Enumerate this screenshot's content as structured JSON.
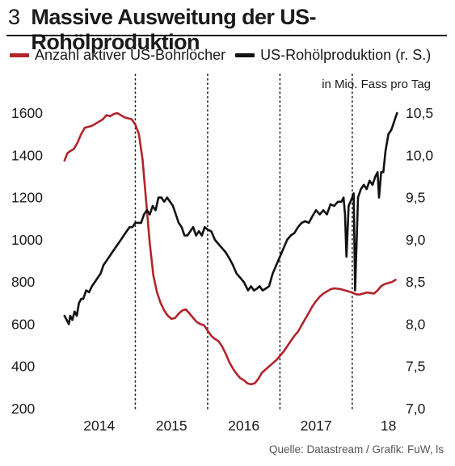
{
  "header": {
    "number": "3",
    "title": "Massive Ausweitung der US-Rohölproduktion"
  },
  "legend": [
    {
      "label": "Anzahl aktiver US-Bohrlöcher",
      "color": "#b2242b"
    },
    {
      "label": "US-Rohölproduktion (r. S.)",
      "color": "#111111"
    }
  ],
  "unit_right": "in Mio. Fass pro Tag",
  "source": "Quelle: Datastream / Grafik: FuW, ls",
  "chart_data": {
    "type": "line",
    "title": "Massive Ausweitung der US-Rohölproduktion",
    "x_labels": [
      "2014",
      "2015",
      "2016",
      "2017",
      "18"
    ],
    "x_range": [
      2013.5,
      2018.15
    ],
    "y_left": {
      "ticks": [
        "1600",
        "1400",
        "1200",
        "1000",
        "800",
        "600",
        "400",
        "200"
      ],
      "range": [
        200,
        1650
      ]
    },
    "y_right": {
      "ticks": [
        "10,5",
        "10,0",
        "9,5",
        "9,0",
        "8,5",
        "8,0",
        "7,5",
        "7,0"
      ],
      "range": [
        7.0,
        10.55
      ],
      "label": "in Mio. Fass pro Tag"
    },
    "grid": "vertical dotted at year boundaries",
    "series": [
      {
        "name": "Anzahl aktiver US-Bohrlöcher",
        "axis": "left",
        "color": "#b2242b",
        "x": [
          2013.52,
          2013.56,
          2013.6,
          2013.65,
          2013.7,
          2013.75,
          2013.8,
          2013.85,
          2013.9,
          2013.95,
          2014.0,
          2014.05,
          2014.1,
          2014.15,
          2014.2,
          2014.25,
          2014.3,
          2014.35,
          2014.4,
          2014.45,
          2014.5,
          2014.55,
          2014.6,
          2014.65,
          2014.7,
          2014.75,
          2014.8,
          2014.85,
          2014.9,
          2014.95,
          2015.0,
          2015.05,
          2015.1,
          2015.15,
          2015.2,
          2015.25,
          2015.3,
          2015.35,
          2015.4,
          2015.45,
          2015.5,
          2015.55,
          2015.6,
          2015.65,
          2015.7,
          2015.75,
          2015.8,
          2015.85,
          2015.9,
          2015.95,
          2016.0,
          2016.05,
          2016.1,
          2016.15,
          2016.2,
          2016.25,
          2016.3,
          2016.35,
          2016.4,
          2016.45,
          2016.5,
          2016.55,
          2016.6,
          2016.65,
          2016.7,
          2016.75,
          2016.8,
          2016.85,
          2016.9,
          2016.95,
          2017.0,
          2017.05,
          2017.1,
          2017.15,
          2017.2,
          2017.25,
          2017.3,
          2017.35,
          2017.4,
          2017.45,
          2017.5,
          2017.55,
          2017.6,
          2017.65,
          2017.7,
          2017.75,
          2017.8,
          2017.85,
          2017.9,
          2017.95,
          2018.0,
          2018.05,
          2018.1
        ],
        "values": [
          1375,
          1410,
          1420,
          1430,
          1460,
          1500,
          1530,
          1535,
          1540,
          1550,
          1560,
          1570,
          1590,
          1585,
          1595,
          1600,
          1590,
          1580,
          1575,
          1570,
          1545,
          1500,
          1380,
          1180,
          980,
          830,
          750,
          700,
          665,
          640,
          625,
          630,
          650,
          665,
          670,
          650,
          630,
          610,
          600,
          595,
          570,
          545,
          530,
          520,
          495,
          460,
          420,
          390,
          365,
          345,
          335,
          320,
          315,
          320,
          340,
          370,
          385,
          400,
          415,
          430,
          450,
          470,
          495,
          520,
          545,
          565,
          595,
          625,
          655,
          685,
          710,
          730,
          745,
          755,
          765,
          770,
          768,
          765,
          760,
          755,
          750,
          742,
          740,
          745,
          750,
          748,
          745,
          760,
          780,
          790,
          795,
          800,
          810
        ]
      },
      {
        "name": "US-Rohölproduktion (r. S.)",
        "axis": "right",
        "color": "#111111",
        "x": [
          2013.52,
          2013.55,
          2013.58,
          2013.6,
          2013.63,
          2013.66,
          2013.69,
          2013.72,
          2013.75,
          2013.78,
          2013.82,
          2013.86,
          2013.9,
          2013.94,
          2013.98,
          2014.02,
          2014.06,
          2014.1,
          2014.14,
          2014.18,
          2014.22,
          2014.26,
          2014.3,
          2014.34,
          2014.38,
          2014.42,
          2014.46,
          2014.5,
          2014.54,
          2014.58,
          2014.62,
          2014.66,
          2014.7,
          2014.74,
          2014.78,
          2014.82,
          2014.86,
          2014.9,
          2014.94,
          2014.98,
          2015.02,
          2015.06,
          2015.1,
          2015.14,
          2015.18,
          2015.22,
          2015.26,
          2015.3,
          2015.34,
          2015.38,
          2015.42,
          2015.46,
          2015.5,
          2015.55,
          2015.6,
          2015.65,
          2015.7,
          2015.75,
          2015.8,
          2015.85,
          2015.9,
          2015.95,
          2016.0,
          2016.03,
          2016.06,
          2016.1,
          2016.14,
          2016.18,
          2016.22,
          2016.26,
          2016.3,
          2016.35,
          2016.4,
          2016.45,
          2016.5,
          2016.55,
          2016.6,
          2016.65,
          2016.7,
          2016.75,
          2016.8,
          2016.85,
          2016.9,
          2016.95,
          2017.0,
          2017.05,
          2017.1,
          2017.15,
          2017.2,
          2017.25,
          2017.3,
          2017.35,
          2017.38,
          2017.4,
          2017.42,
          2017.45,
          2017.5,
          2017.52,
          2017.54,
          2017.58,
          2017.62,
          2017.66,
          2017.7,
          2017.74,
          2017.78,
          2017.82,
          2017.85,
          2017.87,
          2017.9,
          2017.93,
          2017.96,
          2018.0,
          2018.04,
          2018.08,
          2018.12
        ],
        "values": [
          8.1,
          8.05,
          8.0,
          8.1,
          8.05,
          8.15,
          8.1,
          8.25,
          8.3,
          8.3,
          8.4,
          8.38,
          8.45,
          8.5,
          8.55,
          8.6,
          8.7,
          8.75,
          8.8,
          8.85,
          8.9,
          8.95,
          9.0,
          9.05,
          9.1,
          9.15,
          9.15,
          9.2,
          9.2,
          9.2,
          9.3,
          9.35,
          9.3,
          9.4,
          9.35,
          9.5,
          9.5,
          9.45,
          9.5,
          9.45,
          9.4,
          9.3,
          9.2,
          9.15,
          9.05,
          9.05,
          9.1,
          9.15,
          9.05,
          9.1,
          9.05,
          9.15,
          9.12,
          9.1,
          9.0,
          8.95,
          8.9,
          8.85,
          8.78,
          8.7,
          8.6,
          8.55,
          8.5,
          8.45,
          8.4,
          8.45,
          8.4,
          8.42,
          8.45,
          8.4,
          8.42,
          8.45,
          8.6,
          8.7,
          8.8,
          8.9,
          9.0,
          9.05,
          9.08,
          9.15,
          9.2,
          9.22,
          9.2,
          9.28,
          9.35,
          9.3,
          9.35,
          9.3,
          9.42,
          9.4,
          9.45,
          9.45,
          9.5,
          9.3,
          8.8,
          9.4,
          9.5,
          9.55,
          8.4,
          9.5,
          9.6,
          9.65,
          9.6,
          9.7,
          9.65,
          9.75,
          9.8,
          9.5,
          9.8,
          9.8,
          10.05,
          10.25,
          10.3,
          10.4,
          10.5
        ]
      }
    ]
  }
}
